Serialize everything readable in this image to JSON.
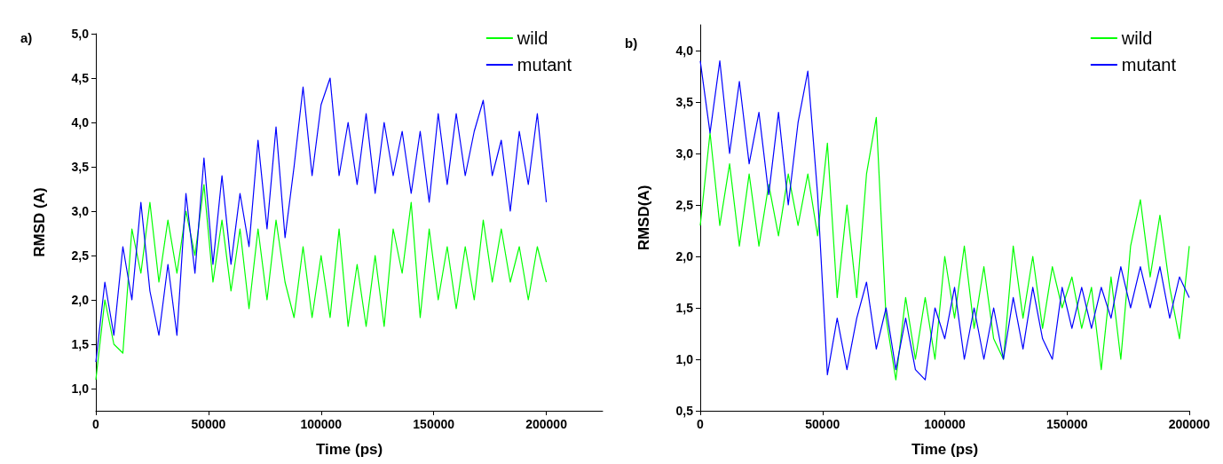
{
  "chart_data": [
    {
      "type": "line",
      "title": "a)",
      "xlabel": "Time (ps)",
      "ylabel": "RMSD (A)",
      "legend": "top right",
      "grid": false,
      "line_style": "solid",
      "xlim": [
        0,
        225000
      ],
      "xticks": [
        0,
        50000,
        100000,
        150000,
        200000
      ],
      "ylim": [
        0.75,
        5.0
      ],
      "yticks": [
        {
          "value": 1.0,
          "label": "1,0"
        },
        {
          "value": 1.5,
          "label": "1,5"
        },
        {
          "value": 2.0,
          "label": "2,0"
        },
        {
          "value": 2.5,
          "label": "2,5"
        },
        {
          "value": 3.0,
          "label": "3,0"
        },
        {
          "value": 3.5,
          "label": "3,5"
        },
        {
          "value": 4.0,
          "label": "4,0"
        },
        {
          "value": 4.5,
          "label": "4,5"
        },
        {
          "value": 5.0,
          "label": "5,0"
        }
      ],
      "x": [
        0,
        4000,
        8000,
        12000,
        16000,
        20000,
        24000,
        28000,
        32000,
        36000,
        40000,
        44000,
        48000,
        52000,
        56000,
        60000,
        64000,
        68000,
        72000,
        76000,
        80000,
        84000,
        88000,
        92000,
        96000,
        100000,
        104000,
        108000,
        112000,
        116000,
        120000,
        124000,
        128000,
        132000,
        136000,
        140000,
        144000,
        148000,
        152000,
        156000,
        160000,
        164000,
        168000,
        172000,
        176000,
        180000,
        184000,
        188000,
        192000,
        196000,
        200000
      ],
      "series": [
        {
          "name": "wild",
          "color": "#00ff00",
          "values": [
            1.1,
            2.0,
            1.5,
            1.4,
            2.8,
            2.3,
            3.1,
            2.2,
            2.9,
            2.3,
            3.0,
            2.5,
            3.3,
            2.2,
            2.9,
            2.1,
            2.8,
            1.9,
            2.8,
            2.0,
            2.9,
            2.2,
            1.8,
            2.6,
            1.8,
            2.5,
            1.8,
            2.8,
            1.7,
            2.4,
            1.7,
            2.5,
            1.7,
            2.8,
            2.3,
            3.1,
            1.8,
            2.8,
            2.0,
            2.6,
            1.9,
            2.6,
            2.0,
            2.9,
            2.2,
            2.8,
            2.2,
            2.6,
            2.0,
            2.6,
            2.2
          ]
        },
        {
          "name": "mutant",
          "color": "#0000ff",
          "values": [
            1.3,
            2.2,
            1.6,
            2.6,
            2.0,
            3.1,
            2.1,
            1.6,
            2.4,
            1.6,
            3.2,
            2.3,
            3.6,
            2.4,
            3.4,
            2.4,
            3.2,
            2.6,
            3.8,
            2.8,
            3.95,
            2.7,
            3.5,
            4.4,
            3.4,
            4.2,
            4.5,
            3.4,
            4.0,
            3.3,
            4.1,
            3.2,
            4.0,
            3.4,
            3.9,
            3.2,
            3.9,
            3.1,
            4.1,
            3.3,
            4.1,
            3.4,
            3.9,
            4.25,
            3.4,
            3.8,
            3.0,
            3.9,
            3.3,
            4.1,
            3.1
          ]
        }
      ]
    },
    {
      "type": "line",
      "title": "b)",
      "xlabel": "Time (ps)",
      "ylabel": "RMSD(A)",
      "legend": "top right",
      "grid": false,
      "line_style": "solid",
      "xlim": [
        0,
        200000
      ],
      "xticks": [
        0,
        50000,
        100000,
        150000,
        200000
      ],
      "ylim": [
        0.5,
        4.25
      ],
      "yticks": [
        {
          "value": 0.5,
          "label": "0,5"
        },
        {
          "value": 1.0,
          "label": "1,0"
        },
        {
          "value": 1.5,
          "label": "1,5"
        },
        {
          "value": 2.0,
          "label": "2,0"
        },
        {
          "value": 2.5,
          "label": "2,5"
        },
        {
          "value": 3.0,
          "label": "3,0"
        },
        {
          "value": 3.5,
          "label": "3,5"
        },
        {
          "value": 4.0,
          "label": "4,0"
        }
      ],
      "x": [
        0,
        4000,
        8000,
        12000,
        16000,
        20000,
        24000,
        28000,
        32000,
        36000,
        40000,
        44000,
        48000,
        52000,
        56000,
        60000,
        64000,
        68000,
        72000,
        76000,
        80000,
        84000,
        88000,
        92000,
        96000,
        100000,
        104000,
        108000,
        112000,
        116000,
        120000,
        124000,
        128000,
        132000,
        136000,
        140000,
        144000,
        148000,
        152000,
        156000,
        160000,
        164000,
        168000,
        172000,
        176000,
        180000,
        184000,
        188000,
        192000,
        196000,
        200000
      ],
      "series": [
        {
          "name": "wild",
          "color": "#00ff00",
          "values": [
            2.3,
            3.2,
            2.3,
            2.9,
            2.1,
            2.8,
            2.1,
            2.7,
            2.2,
            2.8,
            2.3,
            2.8,
            2.2,
            3.1,
            1.6,
            2.5,
            1.6,
            2.8,
            3.35,
            1.4,
            0.8,
            1.6,
            1.0,
            1.6,
            1.0,
            2.0,
            1.4,
            2.1,
            1.3,
            1.9,
            1.2,
            1.0,
            2.1,
            1.4,
            2.0,
            1.3,
            1.9,
            1.5,
            1.8,
            1.3,
            1.7,
            0.9,
            1.8,
            1.0,
            2.1,
            2.55,
            1.8,
            2.4,
            1.7,
            1.2,
            2.1
          ]
        },
        {
          "name": "mutant",
          "color": "#0000ff",
          "values": [
            3.9,
            3.2,
            3.9,
            3.0,
            3.7,
            2.9,
            3.4,
            2.6,
            3.4,
            2.5,
            3.3,
            3.8,
            2.6,
            0.85,
            1.4,
            0.9,
            1.4,
            1.75,
            1.1,
            1.5,
            0.9,
            1.4,
            0.9,
            0.8,
            1.5,
            1.2,
            1.7,
            1.0,
            1.5,
            1.0,
            1.5,
            1.0,
            1.6,
            1.1,
            1.7,
            1.2,
            1.0,
            1.7,
            1.3,
            1.7,
            1.3,
            1.7,
            1.4,
            1.9,
            1.5,
            1.9,
            1.5,
            1.9,
            1.4,
            1.8,
            1.6
          ]
        }
      ]
    }
  ]
}
